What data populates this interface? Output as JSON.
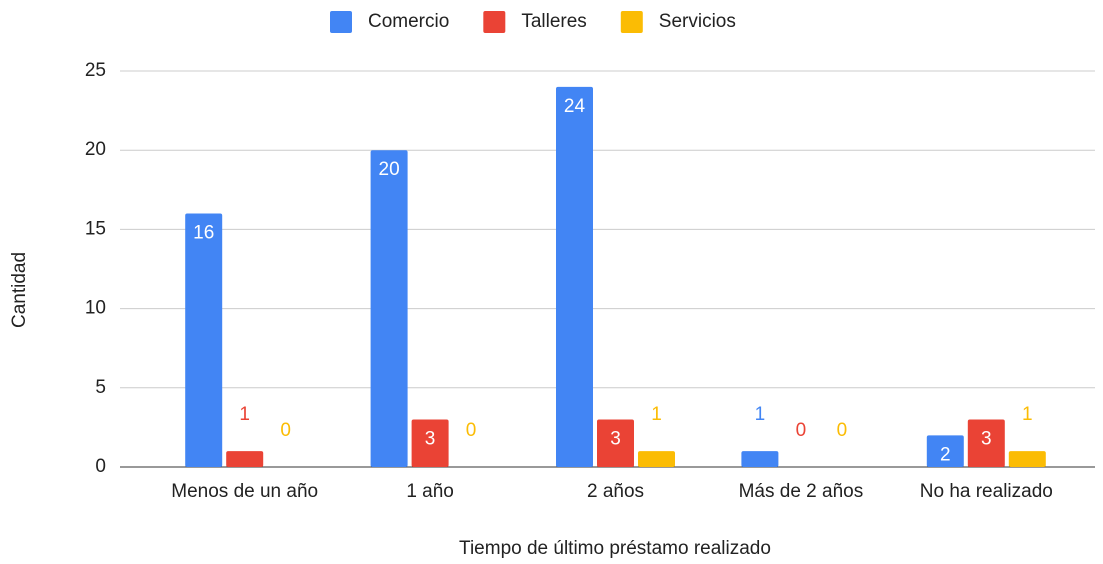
{
  "chart_data": {
    "type": "bar",
    "categories": [
      "Menos de un año",
      "1 año",
      "2 años",
      "Más de 2 años",
      "No ha realizado"
    ],
    "series": [
      {
        "name": "Comercio",
        "color": "#4285f4",
        "values": [
          16,
          20,
          24,
          1,
          2
        ]
      },
      {
        "name": "Talleres",
        "color": "#ea4335",
        "values": [
          1,
          3,
          3,
          0,
          3
        ]
      },
      {
        "name": "Servicios",
        "color": "#fbbc04",
        "values": [
          0,
          0,
          1,
          0,
          1
        ]
      }
    ],
    "x_label": "Tiempo de último préstamo realizado",
    "y_label": "Cantidad",
    "ylim": [
      0,
      25
    ],
    "yticks": [
      0,
      5,
      10,
      15,
      20,
      25
    ],
    "grid": true,
    "legend": "top"
  }
}
